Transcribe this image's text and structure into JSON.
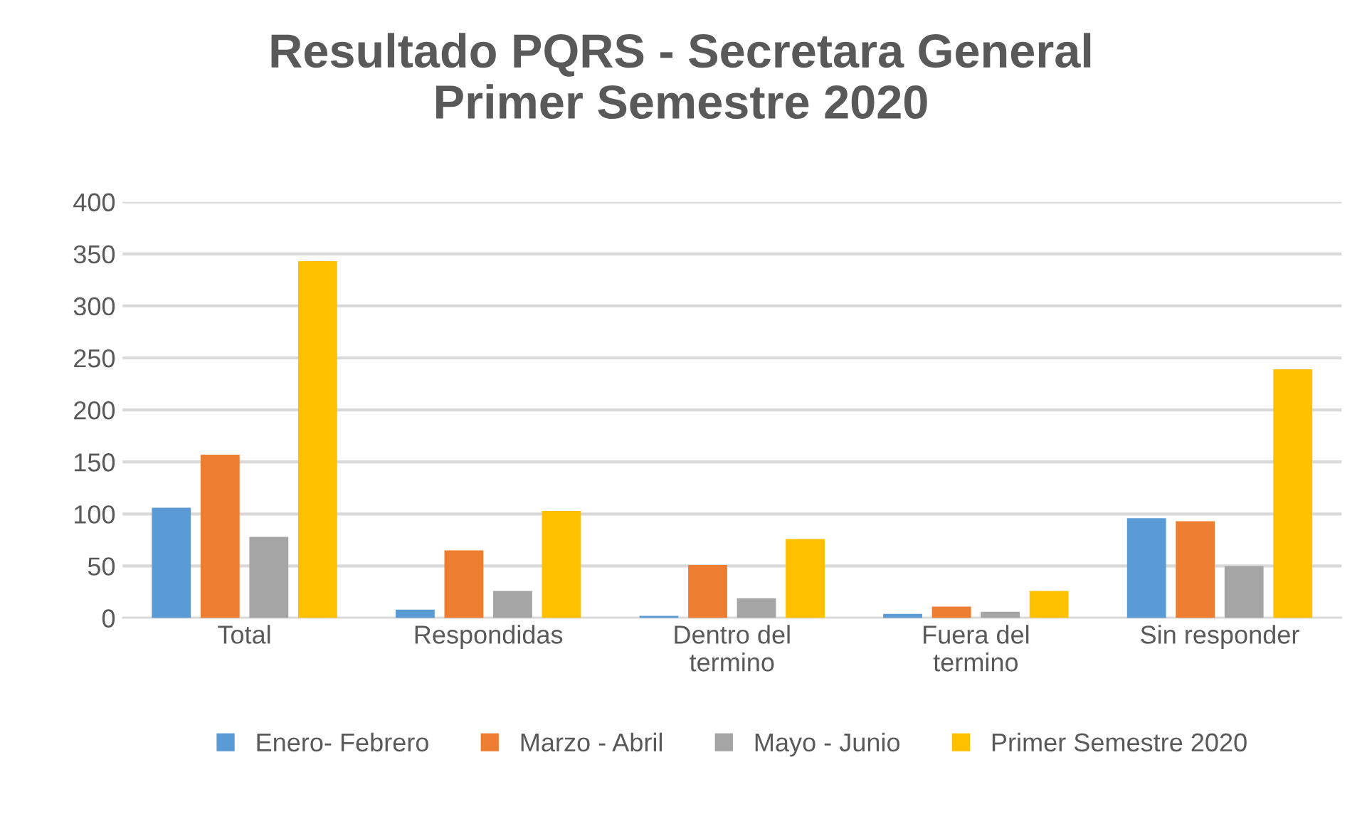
{
  "chart_data": {
    "type": "bar",
    "title": "Resultado PQRS - Secretara General\nPrimer Semestre 2020",
    "categories": [
      "Total",
      "Respondidas",
      "Dentro del\ntermino",
      "Fuera del\ntermino",
      "Sin responder"
    ],
    "series": [
      {
        "name": "Enero- Febrero",
        "color": "#5b9bd5",
        "values": [
          106,
          8,
          2,
          4,
          96
        ]
      },
      {
        "name": "Marzo - Abril",
        "color": "#ed7d31",
        "values": [
          157,
          65,
          51,
          11,
          93
        ]
      },
      {
        "name": "Mayo - Junio",
        "color": "#a5a5a5",
        "values": [
          78,
          26,
          19,
          6,
          50
        ]
      },
      {
        "name": "Primer Semestre 2020",
        "color": "#ffc000",
        "values": [
          343,
          103,
          76,
          26,
          239
        ]
      }
    ],
    "ylim": [
      0,
      400
    ],
    "yticks": [
      0,
      50,
      100,
      150,
      200,
      250,
      300,
      350,
      400
    ],
    "grid": "y",
    "legend": "bottom"
  }
}
